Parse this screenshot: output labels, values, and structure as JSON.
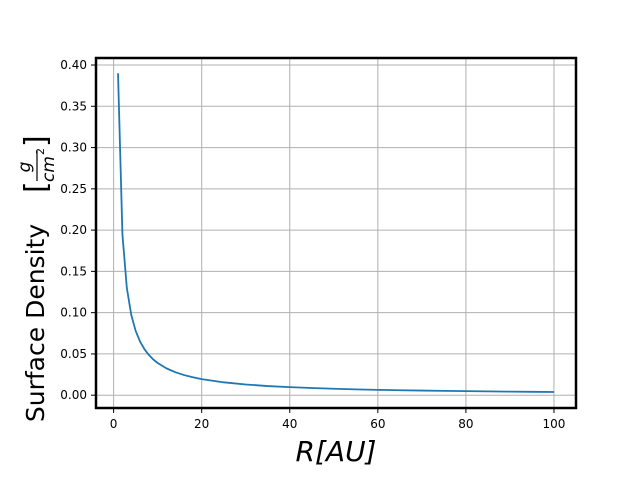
{
  "chart_data": {
    "type": "line",
    "title": "",
    "xlabel_main": "R",
    "xlabel_unit": "[AU]",
    "ylabel_main": "Surface Density",
    "ylabel_unit_num": "g",
    "ylabel_unit_den": "cm",
    "ylabel_unit_den_exp": "2",
    "xlim": [
      -4,
      105
    ],
    "ylim": [
      -0.0155,
      0.4085
    ],
    "xticks": [
      0,
      20,
      40,
      60,
      80,
      100
    ],
    "xtick_labels": [
      "0",
      "20",
      "40",
      "60",
      "80",
      "100"
    ],
    "yticks": [
      0.0,
      0.05,
      0.1,
      0.15,
      0.2,
      0.25,
      0.3,
      0.35,
      0.4
    ],
    "ytick_labels": [
      "0.00",
      "0.05",
      "0.10",
      "0.15",
      "0.20",
      "0.25",
      "0.30",
      "0.35",
      "0.40"
    ],
    "grid": true,
    "series": [
      {
        "color": "#1f77b4",
        "x": [
          1,
          2,
          3,
          4,
          5,
          6,
          7,
          8,
          9,
          10,
          12,
          14,
          16,
          18,
          20,
          25,
          30,
          35,
          40,
          45,
          50,
          55,
          60,
          65,
          70,
          75,
          80,
          85,
          90,
          95,
          100
        ],
        "y": [
          0.39,
          0.195,
          0.13,
          0.0975,
          0.078,
          0.065,
          0.0557,
          0.0488,
          0.0433,
          0.039,
          0.0325,
          0.0279,
          0.0244,
          0.0217,
          0.0195,
          0.0156,
          0.013,
          0.0111,
          0.0098,
          0.0087,
          0.0078,
          0.0071,
          0.0065,
          0.006,
          0.0056,
          0.0052,
          0.0049,
          0.0046,
          0.0043,
          0.0041,
          0.0039
        ]
      }
    ]
  }
}
